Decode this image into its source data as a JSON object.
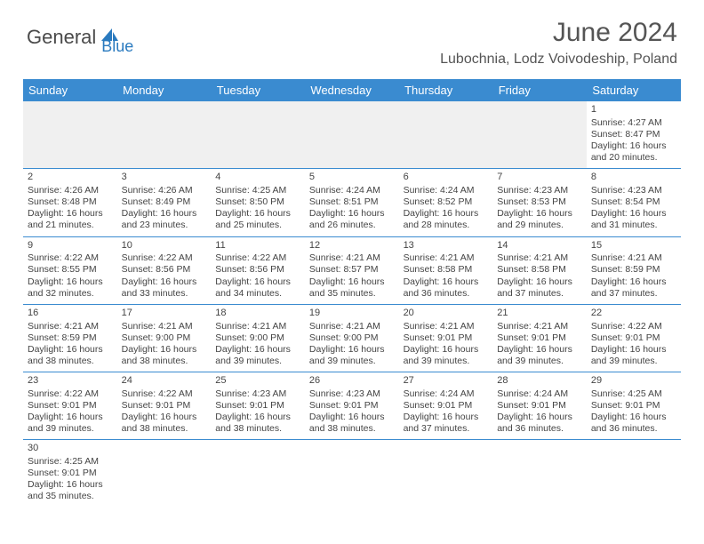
{
  "logo": {
    "part1": "General",
    "part2": "Blue"
  },
  "title": "June 2024",
  "location": "Lubochnia, Lodz Voivodeship, Poland",
  "colors": {
    "header_bg": "#3a8bd0",
    "header_text": "#ffffff",
    "border": "#3a8bd0",
    "empty_bg": "#f0f0f0",
    "body_text": "#444444",
    "title_text": "#555555",
    "logo_gray": "#4a4a4a",
    "logo_blue": "#2a7abf"
  },
  "typography": {
    "title_fontsize": 30,
    "location_fontsize": 16,
    "dayheader_fontsize": 13,
    "cell_fontsize": 10.5
  },
  "day_labels": [
    "Sunday",
    "Monday",
    "Tuesday",
    "Wednesday",
    "Thursday",
    "Friday",
    "Saturday"
  ],
  "weeks": [
    [
      null,
      null,
      null,
      null,
      null,
      null,
      {
        "n": "1",
        "sr": "4:27 AM",
        "ss": "8:47 PM",
        "dh": "16",
        "dm": "20"
      }
    ],
    [
      {
        "n": "2",
        "sr": "4:26 AM",
        "ss": "8:48 PM",
        "dh": "16",
        "dm": "21"
      },
      {
        "n": "3",
        "sr": "4:26 AM",
        "ss": "8:49 PM",
        "dh": "16",
        "dm": "23"
      },
      {
        "n": "4",
        "sr": "4:25 AM",
        "ss": "8:50 PM",
        "dh": "16",
        "dm": "25"
      },
      {
        "n": "5",
        "sr": "4:24 AM",
        "ss": "8:51 PM",
        "dh": "16",
        "dm": "26"
      },
      {
        "n": "6",
        "sr": "4:24 AM",
        "ss": "8:52 PM",
        "dh": "16",
        "dm": "28"
      },
      {
        "n": "7",
        "sr": "4:23 AM",
        "ss": "8:53 PM",
        "dh": "16",
        "dm": "29"
      },
      {
        "n": "8",
        "sr": "4:23 AM",
        "ss": "8:54 PM",
        "dh": "16",
        "dm": "31"
      }
    ],
    [
      {
        "n": "9",
        "sr": "4:22 AM",
        "ss": "8:55 PM",
        "dh": "16",
        "dm": "32"
      },
      {
        "n": "10",
        "sr": "4:22 AM",
        "ss": "8:56 PM",
        "dh": "16",
        "dm": "33"
      },
      {
        "n": "11",
        "sr": "4:22 AM",
        "ss": "8:56 PM",
        "dh": "16",
        "dm": "34"
      },
      {
        "n": "12",
        "sr": "4:21 AM",
        "ss": "8:57 PM",
        "dh": "16",
        "dm": "35"
      },
      {
        "n": "13",
        "sr": "4:21 AM",
        "ss": "8:58 PM",
        "dh": "16",
        "dm": "36"
      },
      {
        "n": "14",
        "sr": "4:21 AM",
        "ss": "8:58 PM",
        "dh": "16",
        "dm": "37"
      },
      {
        "n": "15",
        "sr": "4:21 AM",
        "ss": "8:59 PM",
        "dh": "16",
        "dm": "37"
      }
    ],
    [
      {
        "n": "16",
        "sr": "4:21 AM",
        "ss": "8:59 PM",
        "dh": "16",
        "dm": "38"
      },
      {
        "n": "17",
        "sr": "4:21 AM",
        "ss": "9:00 PM",
        "dh": "16",
        "dm": "38"
      },
      {
        "n": "18",
        "sr": "4:21 AM",
        "ss": "9:00 PM",
        "dh": "16",
        "dm": "39"
      },
      {
        "n": "19",
        "sr": "4:21 AM",
        "ss": "9:00 PM",
        "dh": "16",
        "dm": "39"
      },
      {
        "n": "20",
        "sr": "4:21 AM",
        "ss": "9:01 PM",
        "dh": "16",
        "dm": "39"
      },
      {
        "n": "21",
        "sr": "4:21 AM",
        "ss": "9:01 PM",
        "dh": "16",
        "dm": "39"
      },
      {
        "n": "22",
        "sr": "4:22 AM",
        "ss": "9:01 PM",
        "dh": "16",
        "dm": "39"
      }
    ],
    [
      {
        "n": "23",
        "sr": "4:22 AM",
        "ss": "9:01 PM",
        "dh": "16",
        "dm": "39"
      },
      {
        "n": "24",
        "sr": "4:22 AM",
        "ss": "9:01 PM",
        "dh": "16",
        "dm": "38"
      },
      {
        "n": "25",
        "sr": "4:23 AM",
        "ss": "9:01 PM",
        "dh": "16",
        "dm": "38"
      },
      {
        "n": "26",
        "sr": "4:23 AM",
        "ss": "9:01 PM",
        "dh": "16",
        "dm": "38"
      },
      {
        "n": "27",
        "sr": "4:24 AM",
        "ss": "9:01 PM",
        "dh": "16",
        "dm": "37"
      },
      {
        "n": "28",
        "sr": "4:24 AM",
        "ss": "9:01 PM",
        "dh": "16",
        "dm": "36"
      },
      {
        "n": "29",
        "sr": "4:25 AM",
        "ss": "9:01 PM",
        "dh": "16",
        "dm": "36"
      }
    ],
    [
      {
        "n": "30",
        "sr": "4:25 AM",
        "ss": "9:01 PM",
        "dh": "16",
        "dm": "35"
      },
      null,
      null,
      null,
      null,
      null,
      null
    ]
  ],
  "labels": {
    "sunrise": "Sunrise:",
    "sunset": "Sunset:",
    "daylight_pre": "Daylight:",
    "hours_word": "hours",
    "and_word": "and",
    "minutes_word": "minutes."
  }
}
